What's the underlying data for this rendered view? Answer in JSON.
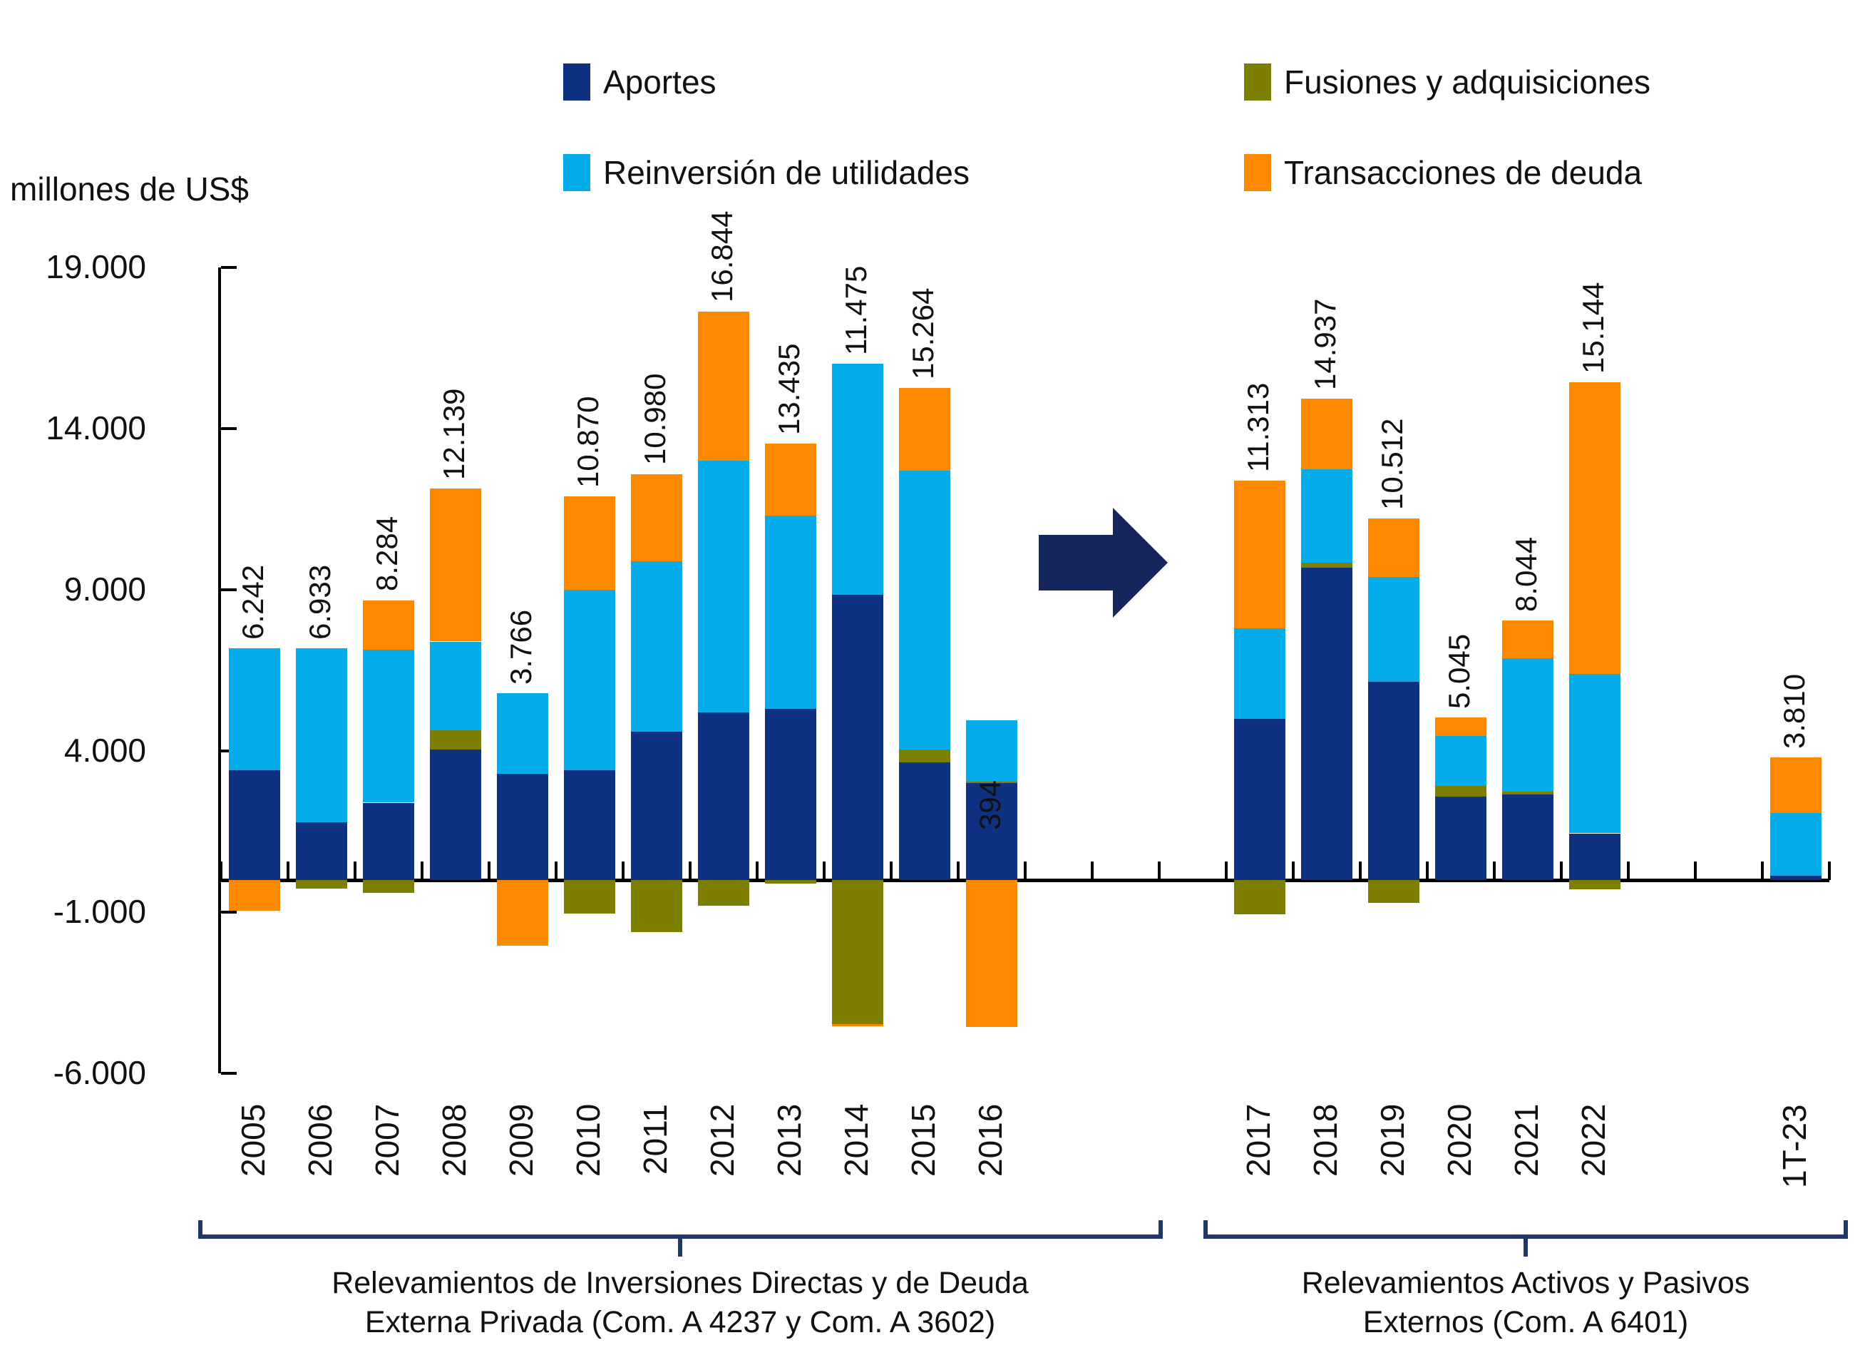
{
  "unit_label": "millones de US$",
  "legend": {
    "items": [
      {
        "label": "Aportes",
        "color": "#0f3181"
      },
      {
        "label": "Fusiones y adquisiciones",
        "color": "#7c7f00"
      },
      {
        "label": "Reinversión de utilidades",
        "color": "#04adea"
      },
      {
        "label": "Transacciones de deuda",
        "color": "#fd8900"
      }
    ]
  },
  "chart_data": {
    "type": "bar",
    "stacked": true,
    "title": "",
    "ylabel": "millones de US$",
    "xlabel": "",
    "ylim": [
      -6000,
      19000
    ],
    "grid": false,
    "legend_position": "top",
    "y_ticks": [
      {
        "label": "19.000",
        "value": 19000
      },
      {
        "label": "14.000",
        "value": 14000
      },
      {
        "label": "9.000",
        "value": 9000
      },
      {
        "label": "4.000",
        "value": 4000
      },
      {
        "label": "-1.000",
        "value": -1000
      },
      {
        "label": "-6.000",
        "value": -6000
      }
    ],
    "series": [
      {
        "key": "aportes",
        "name": "Aportes",
        "color": "#0f3181"
      },
      {
        "key": "fusiones",
        "name": "Fusiones y adquisiciones",
        "color": "#7c7f00"
      },
      {
        "key": "reinversion",
        "name": "Reinversión de utilidades",
        "color": "#04adea"
      },
      {
        "key": "deuda",
        "name": "Transacciones de deuda",
        "color": "#fd8900"
      }
    ],
    "bars": [
      {
        "category": "2005",
        "slot": 0,
        "total": 6242,
        "total_label": "6.242",
        "values": {
          "aportes": 3400,
          "fusiones": 0,
          "reinversion": 3800,
          "deuda": -958
        }
      },
      {
        "category": "2006",
        "slot": 1,
        "total": 6933,
        "total_label": "6.933",
        "values": {
          "aportes": 1800,
          "fusiones": -267,
          "reinversion": 5400,
          "deuda": 0
        }
      },
      {
        "category": "2007",
        "slot": 2,
        "total": 8284,
        "total_label": "8.284",
        "values": {
          "aportes": 2400,
          "fusiones": -400,
          "reinversion": 4750,
          "deuda": 1534
        }
      },
      {
        "category": "2008",
        "slot": 3,
        "total": 12139,
        "total_label": "12.139",
        "values": {
          "aportes": 4050,
          "fusiones": 600,
          "reinversion": 2750,
          "deuda": 4739
        }
      },
      {
        "category": "2009",
        "slot": 4,
        "total": 3766,
        "total_label": "3.766",
        "values": {
          "aportes": 3300,
          "fusiones": 0,
          "reinversion": 2500,
          "deuda": -2034
        }
      },
      {
        "category": "2010",
        "slot": 5,
        "total": 10870,
        "total_label": "10.870",
        "values": {
          "aportes": 3400,
          "fusiones": -1030,
          "reinversion": 5600,
          "deuda": 2900
        }
      },
      {
        "category": "2011",
        "slot": 6,
        "total": 10980,
        "total_label": "10.980",
        "values": {
          "aportes": 4600,
          "fusiones": -1620,
          "reinversion": 5300,
          "deuda": 2700
        }
      },
      {
        "category": "2012",
        "slot": 7,
        "total": 16844,
        "total_label": "16.844",
        "values": {
          "aportes": 5200,
          "fusiones": -800,
          "reinversion": 7800,
          "deuda": 4644
        }
      },
      {
        "category": "2013",
        "slot": 8,
        "total": 13435,
        "total_label": "13.435",
        "values": {
          "aportes": 5300,
          "fusiones": -100,
          "reinversion": 6000,
          "deuda": 2235
        }
      },
      {
        "category": "2014",
        "slot": 9,
        "total": 11475,
        "total_label": "11.475",
        "values": {
          "aportes": 8850,
          "fusiones": -4470,
          "reinversion": 7170,
          "deuda": -75
        }
      },
      {
        "category": "2015",
        "slot": 10,
        "total": 15264,
        "total_label": "15.264",
        "values": {
          "aportes": 3650,
          "fusiones": 400,
          "reinversion": 8650,
          "deuda": 2564
        }
      },
      {
        "category": "2016",
        "slot": 11,
        "total": 394,
        "total_label": "394",
        "label_inside": true,
        "values": {
          "aportes": 3000,
          "fusiones": 50,
          "reinversion": 1900,
          "deuda": -4556
        }
      },
      {
        "category": "2017",
        "slot": 15,
        "total": 11313,
        "total_label": "11.313",
        "values": {
          "aportes": 5000,
          "fusiones": -1067,
          "reinversion": 2800,
          "deuda": 4580
        }
      },
      {
        "category": "2018",
        "slot": 16,
        "total": 14937,
        "total_label": "14.937",
        "values": {
          "aportes": 9700,
          "fusiones": 150,
          "reinversion": 2900,
          "deuda": 2187
        }
      },
      {
        "category": "2019",
        "slot": 17,
        "total": 10512,
        "total_label": "10.512",
        "values": {
          "aportes": 6150,
          "fusiones": -700,
          "reinversion": 3250,
          "deuda": 1812
        }
      },
      {
        "category": "2020",
        "slot": 18,
        "total": 5045,
        "total_label": "5.045",
        "values": {
          "aportes": 2600,
          "fusiones": 320,
          "reinversion": 1540,
          "deuda": 585
        }
      },
      {
        "category": "2021",
        "slot": 19,
        "total": 8044,
        "total_label": "8.044",
        "values": {
          "aportes": 2660,
          "fusiones": 80,
          "reinversion": 4140,
          "deuda": 1164
        }
      },
      {
        "category": "2022",
        "slot": 20,
        "total": 15144,
        "total_label": "15.144",
        "values": {
          "aportes": 1450,
          "fusiones": -296,
          "reinversion": 4950,
          "deuda": 9040
        }
      },
      {
        "category": "1T-23",
        "slot": 23,
        "total": 3810,
        "total_label": "3.810",
        "values": {
          "aportes": 140,
          "fusiones": 0,
          "reinversion": 1940,
          "deuda": 1730
        }
      }
    ],
    "groups": [
      {
        "caption_line1": "Relevamientos de Inversiones Directas y de Deuda",
        "caption_line2": "Externa Privada (Com. A 4237 y Com. A 3602)"
      },
      {
        "caption_line1": "Relevamientos Activos y Pasivos",
        "caption_line2": "Externos (Com. A 6401)"
      }
    ]
  },
  "decor": {
    "arrow_color": "#15265c",
    "bracket_color": "#1f3868"
  }
}
